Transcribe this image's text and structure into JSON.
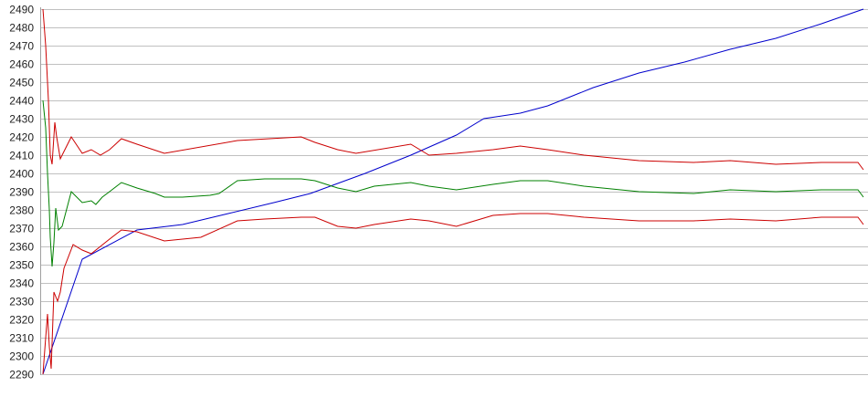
{
  "chart_data": {
    "type": "line",
    "title": "",
    "xlabel": "",
    "ylabel": "",
    "ylim": [
      2290,
      2490
    ],
    "xlim": [
      0,
      900
    ],
    "grid": true,
    "yticks": [
      2290,
      2300,
      2310,
      2320,
      2330,
      2340,
      2350,
      2360,
      2370,
      2380,
      2390,
      2400,
      2410,
      2420,
      2430,
      2440,
      2450,
      2460,
      2470,
      2480,
      2490
    ],
    "colors": {
      "grid": "#c0c0c0",
      "axis": "#a0a0a0"
    },
    "series": [
      {
        "color": "#0000cc",
        "points": [
          [
            0,
            2290
          ],
          [
            43,
            2353
          ],
          [
            103,
            2369
          ],
          [
            153,
            2372
          ],
          [
            203,
            2378
          ],
          [
            253,
            2384
          ],
          [
            293,
            2389
          ],
          [
            353,
            2400
          ],
          [
            403,
            2410
          ],
          [
            453,
            2421
          ],
          [
            483,
            2430
          ],
          [
            523,
            2433
          ],
          [
            553,
            2437
          ],
          [
            603,
            2447
          ],
          [
            653,
            2455
          ],
          [
            703,
            2461
          ],
          [
            753,
            2468
          ],
          [
            803,
            2474
          ],
          [
            853,
            2482
          ],
          [
            899,
            2490
          ]
        ]
      },
      {
        "color": "#008000",
        "points": [
          [
            0,
            2440
          ],
          [
            3,
            2425
          ],
          [
            5,
            2400
          ],
          [
            7,
            2380
          ],
          [
            8,
            2365
          ],
          [
            10,
            2349
          ],
          [
            12,
            2362
          ],
          [
            14,
            2381
          ],
          [
            17,
            2369
          ],
          [
            21,
            2371
          ],
          [
            31,
            2390
          ],
          [
            43,
            2384
          ],
          [
            53,
            2385
          ],
          [
            58,
            2383
          ],
          [
            65,
            2387
          ],
          [
            73,
            2390
          ],
          [
            86,
            2395
          ],
          [
            103,
            2392
          ],
          [
            123,
            2389
          ],
          [
            133,
            2387
          ],
          [
            153,
            2387
          ],
          [
            183,
            2388
          ],
          [
            193,
            2389
          ],
          [
            213,
            2396
          ],
          [
            243,
            2397
          ],
          [
            283,
            2397
          ],
          [
            298,
            2396
          ],
          [
            323,
            2392
          ],
          [
            343,
            2390
          ],
          [
            363,
            2393
          ],
          [
            403,
            2395
          ],
          [
            423,
            2393
          ],
          [
            453,
            2391
          ],
          [
            493,
            2394
          ],
          [
            523,
            2396
          ],
          [
            553,
            2396
          ],
          [
            593,
            2393
          ],
          [
            653,
            2390
          ],
          [
            713,
            2389
          ],
          [
            753,
            2391
          ],
          [
            803,
            2390
          ],
          [
            853,
            2391
          ],
          [
            893,
            2391
          ],
          [
            899,
            2387
          ]
        ]
      },
      {
        "color": "#cc0000",
        "points": [
          [
            0,
            2490
          ],
          [
            3,
            2470
          ],
          [
            6,
            2440
          ],
          [
            8,
            2410
          ],
          [
            10,
            2405
          ],
          [
            13,
            2428
          ],
          [
            15,
            2420
          ],
          [
            19,
            2408
          ],
          [
            31,
            2420
          ],
          [
            43,
            2411
          ],
          [
            53,
            2413
          ],
          [
            63,
            2410
          ],
          [
            73,
            2413
          ],
          [
            86,
            2419
          ],
          [
            103,
            2416
          ],
          [
            133,
            2411
          ],
          [
            213,
            2418
          ],
          [
            283,
            2420
          ],
          [
            298,
            2417
          ],
          [
            323,
            2413
          ],
          [
            343,
            2411
          ],
          [
            403,
            2416
          ],
          [
            423,
            2410
          ],
          [
            453,
            2411
          ],
          [
            493,
            2413
          ],
          [
            523,
            2415
          ],
          [
            553,
            2413
          ],
          [
            593,
            2410
          ],
          [
            653,
            2407
          ],
          [
            713,
            2406
          ],
          [
            753,
            2407
          ],
          [
            803,
            2405
          ],
          [
            853,
            2406
          ],
          [
            893,
            2406
          ],
          [
            899,
            2402
          ]
        ]
      },
      {
        "color": "#cc0000",
        "points": [
          [
            0,
            2290
          ],
          [
            3,
            2310
          ],
          [
            5,
            2323
          ],
          [
            7,
            2305
          ],
          [
            9,
            2293
          ],
          [
            12,
            2335
          ],
          [
            16,
            2330
          ],
          [
            19,
            2335
          ],
          [
            23,
            2348
          ],
          [
            33,
            2361
          ],
          [
            43,
            2358
          ],
          [
            53,
            2356
          ],
          [
            63,
            2360
          ],
          [
            73,
            2364
          ],
          [
            86,
            2369
          ],
          [
            103,
            2368
          ],
          [
            133,
            2363
          ],
          [
            173,
            2365
          ],
          [
            213,
            2374
          ],
          [
            243,
            2375
          ],
          [
            283,
            2376
          ],
          [
            298,
            2376
          ],
          [
            323,
            2371
          ],
          [
            343,
            2370
          ],
          [
            363,
            2372
          ],
          [
            403,
            2375
          ],
          [
            423,
            2374
          ],
          [
            453,
            2371
          ],
          [
            493,
            2377
          ],
          [
            523,
            2378
          ],
          [
            553,
            2378
          ],
          [
            593,
            2376
          ],
          [
            653,
            2374
          ],
          [
            713,
            2374
          ],
          [
            753,
            2375
          ],
          [
            803,
            2374
          ],
          [
            853,
            2376
          ],
          [
            893,
            2376
          ],
          [
            899,
            2372
          ]
        ]
      }
    ]
  }
}
